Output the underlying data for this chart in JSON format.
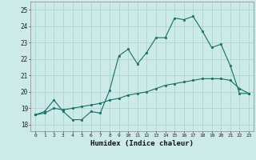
{
  "title": "",
  "xlabel": "Humidex (Indice chaleur)",
  "background_color": "#cceae7",
  "grid_color": "#b0d4d0",
  "line_color": "#1a6e66",
  "x_ticks": [
    0,
    1,
    2,
    3,
    4,
    5,
    6,
    7,
    8,
    9,
    10,
    11,
    12,
    13,
    14,
    15,
    16,
    17,
    18,
    19,
    20,
    21,
    22,
    23
  ],
  "y_ticks": [
    18,
    19,
    20,
    21,
    22,
    23,
    24,
    25
  ],
  "xlim": [
    -0.5,
    23.5
  ],
  "ylim": [
    17.6,
    25.5
  ],
  "line1_x": [
    0,
    1,
    2,
    3,
    4,
    5,
    6,
    7,
    8,
    9,
    10,
    11,
    12,
    13,
    14,
    15,
    16,
    17,
    18,
    19,
    20,
    21,
    22,
    23
  ],
  "line1_y": [
    18.6,
    18.8,
    19.5,
    18.8,
    18.3,
    18.3,
    18.8,
    18.7,
    20.1,
    22.2,
    22.6,
    21.7,
    22.4,
    23.3,
    23.3,
    24.5,
    24.4,
    24.6,
    23.7,
    22.7,
    22.9,
    21.6,
    19.9,
    19.9
  ],
  "line2_x": [
    0,
    1,
    2,
    3,
    4,
    5,
    6,
    7,
    8,
    9,
    10,
    11,
    12,
    13,
    14,
    15,
    16,
    17,
    18,
    19,
    20,
    21,
    22,
    23
  ],
  "line2_y": [
    18.6,
    18.7,
    19.0,
    18.9,
    19.0,
    19.1,
    19.2,
    19.3,
    19.5,
    19.6,
    19.8,
    19.9,
    20.0,
    20.2,
    20.4,
    20.5,
    20.6,
    20.7,
    20.8,
    20.8,
    20.8,
    20.7,
    20.2,
    19.9
  ]
}
